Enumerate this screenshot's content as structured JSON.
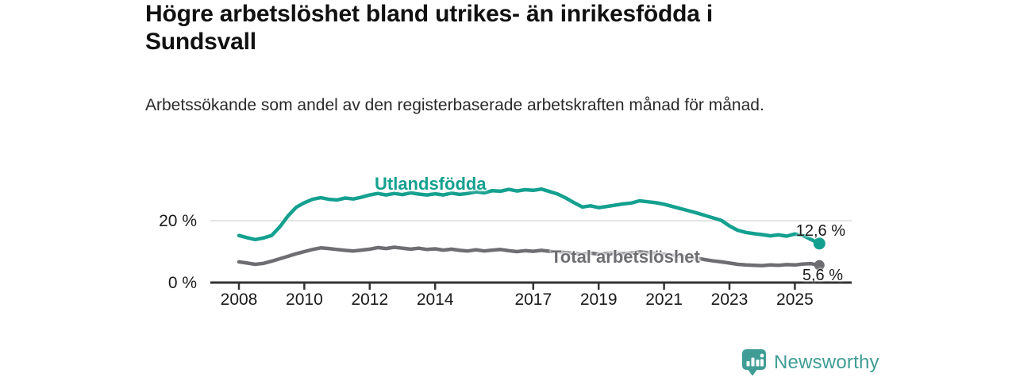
{
  "title": "Högre arbetslöshet bland utrikes- än inrikesfödda i Sundsvall",
  "subtitle": "Arbetssökande som andel av den registerbaserade arbetskraften månad för månad.",
  "footer": {
    "brand": "Newsworthy"
  },
  "colors": {
    "series_foreign": "#14a08f",
    "series_total": "#6e6e72",
    "axis": "#333333",
    "gridline": "#dcdcdc",
    "tick_text": "#1a1a1a",
    "brand_teal": "#3f9d95"
  },
  "chart_data": {
    "type": "line",
    "title": "Högre arbetslöshet bland utrikes- än inrikesfödda i Sundsvall",
    "subtitle": "Arbetssökande som andel av den registerbaserade arbetskraften månad för månad.",
    "x_unit": "year",
    "x_start": 2008.0,
    "x_step": 0.25,
    "x_ticks": [
      2008,
      2010,
      2012,
      2014,
      2017,
      2019,
      2021,
      2023,
      2025
    ],
    "y_ticks": [
      {
        "value": 0,
        "label": "0 %"
      },
      {
        "value": 20,
        "label": "20 %"
      }
    ],
    "ylim": [
      0,
      37
    ],
    "grid": "single horizontal gridline at 20 %",
    "legend": "inline labels next to lines",
    "series": [
      {
        "name": "Utlandsfödda",
        "color": "#14a08f",
        "end_label": "12,6 %",
        "end_value": 12.6,
        "values": [
          15.2,
          14.5,
          13.9,
          14.4,
          15.2,
          18.0,
          21.5,
          24.3,
          25.8,
          26.9,
          27.4,
          26.9,
          26.7,
          27.3,
          27.0,
          27.6,
          28.3,
          28.8,
          28.3,
          28.8,
          28.4,
          29.0,
          28.6,
          28.3,
          28.7,
          28.3,
          28.9,
          28.5,
          28.8,
          29.3,
          29.0,
          29.7,
          29.5,
          30.1,
          29.6,
          30.0,
          29.8,
          30.2,
          29.4,
          28.6,
          27.3,
          25.8,
          24.4,
          24.8,
          24.2,
          24.6,
          25.0,
          25.4,
          25.7,
          26.4,
          26.1,
          25.8,
          25.3,
          24.6,
          23.9,
          23.2,
          22.5,
          21.7,
          20.9,
          20.1,
          18.3,
          16.9,
          16.2,
          15.8,
          15.5,
          15.1,
          15.4,
          15.0,
          15.7,
          15.2,
          13.9,
          12.6
        ]
      },
      {
        "name": "Total arbetslöshet",
        "color": "#6e6e72",
        "end_label": "5,6 %",
        "end_value": 5.6,
        "values": [
          6.7,
          6.3,
          5.9,
          6.2,
          6.9,
          7.7,
          8.5,
          9.3,
          10.0,
          10.7,
          11.2,
          11.0,
          10.7,
          10.4,
          10.2,
          10.5,
          10.8,
          11.3,
          11.0,
          11.4,
          11.1,
          10.8,
          11.1,
          10.7,
          10.9,
          10.5,
          10.8,
          10.4,
          10.2,
          10.6,
          10.2,
          10.5,
          10.7,
          10.3,
          10.0,
          10.3,
          10.1,
          10.4,
          10.1,
          9.9,
          9.7,
          9.4,
          9.2,
          9.5,
          9.2,
          9.4,
          9.6,
          9.3,
          9.5,
          9.9,
          9.7,
          9.4,
          9.1,
          8.8,
          8.5,
          8.2,
          7.9,
          7.4,
          7.0,
          6.7,
          6.3,
          5.9,
          5.7,
          5.6,
          5.5,
          5.7,
          5.6,
          5.8,
          5.7,
          6.0,
          6.1,
          5.6
        ]
      }
    ]
  }
}
